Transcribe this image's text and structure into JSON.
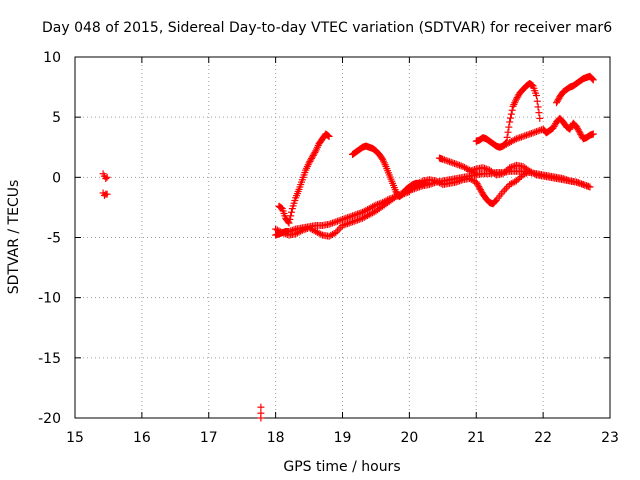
{
  "chart_data": {
    "type": "scatter",
    "title": "Day 048 of 2015, Sidereal Day-to-day VTEC variation (SDTVAR) for receiver mar6",
    "xlabel": "GPS time / hours",
    "ylabel": "SDTVAR / TECUs",
    "xlim": [
      15,
      23
    ],
    "ylim": [
      -20,
      10
    ],
    "xticks": [
      "15",
      "16",
      "17",
      "18",
      "19",
      "20",
      "21",
      "22",
      "23"
    ],
    "yticks": [
      "-20",
      "-15",
      "-10",
      "-5",
      "0",
      "5",
      "10"
    ],
    "grid": true,
    "marker": "plus",
    "color": "#ff0000",
    "series": [
      {
        "name": "",
        "points": [
          [
            15.42,
            0.3
          ],
          [
            15.44,
            0.1
          ],
          [
            15.46,
            -0.1
          ],
          [
            15.48,
            0.0
          ],
          [
            15.42,
            -1.3
          ],
          [
            15.44,
            -1.5
          ],
          [
            15.46,
            -1.4
          ],
          [
            15.48,
            -1.4
          ],
          [
            17.78,
            -19.1
          ],
          [
            17.78,
            -19.6
          ],
          [
            17.78,
            -20.0
          ]
        ]
      },
      {
        "name": "",
        "x": [
          18.0,
          18.05,
          18.1,
          18.15,
          18.2,
          18.3,
          18.4,
          18.5,
          18.6,
          18.7,
          18.8,
          18.9,
          19.0,
          19.1,
          19.2,
          19.3,
          19.4,
          19.5,
          19.6,
          19.7,
          19.8,
          19.9,
          20.0,
          20.1,
          20.2,
          20.3,
          20.4,
          20.5,
          20.6,
          20.7,
          20.8,
          20.9,
          21.0,
          21.1,
          21.2,
          21.3,
          21.4,
          21.5,
          21.6,
          21.7,
          21.8,
          21.9,
          22.0,
          22.1,
          22.2,
          22.3,
          22.4,
          22.5,
          22.6,
          22.7
        ],
        "y": [
          -4.8,
          -4.7,
          -4.6,
          -4.5,
          -4.5,
          -4.3,
          -4.2,
          -4.1,
          -4.0,
          -4.0,
          -3.9,
          -3.7,
          -3.5,
          -3.3,
          -3.1,
          -2.9,
          -2.6,
          -2.3,
          -2.1,
          -1.8,
          -1.6,
          -1.3,
          -1.1,
          -0.9,
          -0.7,
          -0.6,
          -0.4,
          -0.3,
          -0.2,
          -0.1,
          0.0,
          0.1,
          0.2,
          0.3,
          0.3,
          0.4,
          0.4,
          0.5,
          0.5,
          0.5,
          0.4,
          0.3,
          0.2,
          0.1,
          0.0,
          -0.1,
          -0.3,
          -0.4,
          -0.6,
          -0.8
        ]
      },
      {
        "name": "",
        "x": [
          18.0,
          18.1,
          18.2,
          18.3,
          18.4,
          18.5,
          18.6,
          18.7,
          18.8,
          18.9,
          19.0,
          19.1,
          19.2,
          19.3,
          19.4,
          19.5,
          19.6,
          19.7,
          19.8,
          19.9,
          20.0
        ],
        "y": [
          -4.3,
          -4.6,
          -4.8,
          -4.7,
          -4.4,
          -4.2,
          -4.5,
          -4.8,
          -4.9,
          -4.6,
          -4.0,
          -3.8,
          -3.6,
          -3.4,
          -3.1,
          -2.8,
          -2.4,
          -2.0,
          -1.6,
          -1.4,
          -1.2
        ]
      },
      {
        "name": "",
        "x": [
          18.05,
          18.1,
          18.15,
          18.2,
          18.25,
          18.3,
          18.35,
          18.4,
          18.45,
          18.5,
          18.55,
          18.6,
          18.65,
          18.7,
          18.75,
          18.8
        ],
        "y": [
          -2.4,
          -2.6,
          -3.4,
          -3.8,
          -2.6,
          -1.7,
          -1.0,
          -0.2,
          0.6,
          1.2,
          1.7,
          2.2,
          2.8,
          3.2,
          3.6,
          3.4
        ]
      },
      {
        "name": "",
        "x": [
          19.15,
          19.2,
          19.25,
          19.3,
          19.35,
          19.4,
          19.45,
          19.5,
          19.55,
          19.6,
          19.65,
          19.7,
          19.75,
          19.8,
          19.85,
          19.9,
          19.95,
          20.0,
          20.05,
          20.1,
          20.15,
          20.2,
          20.25
        ],
        "y": [
          1.9,
          2.1,
          2.3,
          2.5,
          2.6,
          2.5,
          2.4,
          2.2,
          1.9,
          1.5,
          0.9,
          0.2,
          -0.5,
          -1.2,
          -1.6,
          -1.4,
          -1.0,
          -0.8,
          -0.6,
          -0.5,
          -0.5,
          -0.6,
          -0.4
        ]
      },
      {
        "name": "",
        "x": [
          20.1,
          20.2,
          20.3,
          20.4,
          20.5,
          20.6,
          20.7,
          20.8,
          20.9,
          21.0,
          21.05,
          21.1,
          21.15,
          21.2,
          21.25,
          21.3,
          21.4,
          21.5,
          21.6,
          21.7,
          21.8
        ],
        "y": [
          -0.6,
          -0.3,
          -0.2,
          -0.3,
          -0.6,
          -0.5,
          -0.4,
          -0.2,
          -0.1,
          -0.4,
          -0.9,
          -1.4,
          -1.8,
          -2.1,
          -2.2,
          -1.9,
          -1.2,
          -0.6,
          -0.3,
          0.2,
          0.5
        ]
      },
      {
        "name": "",
        "x": [
          20.45,
          20.5,
          20.6,
          20.7,
          20.8,
          20.9,
          21.0
        ],
        "y": [
          1.6,
          1.5,
          1.3,
          1.1,
          0.9,
          0.6,
          0.3
        ]
      },
      {
        "name": "",
        "x": [
          21.0,
          21.05,
          21.1,
          21.15,
          21.2,
          21.25,
          21.3,
          21.35,
          21.4,
          21.45,
          21.5,
          21.55,
          21.6,
          21.65,
          21.7,
          21.75,
          21.8,
          21.85,
          21.9,
          21.95
        ],
        "y": [
          3.0,
          3.1,
          3.3,
          3.2,
          3.0,
          2.8,
          2.6,
          2.5,
          2.6,
          2.9,
          4.6,
          5.9,
          6.5,
          7.0,
          7.3,
          7.6,
          7.8,
          7.6,
          6.8,
          4.9
        ]
      },
      {
        "name": "",
        "x": [
          21.4,
          21.5,
          21.6,
          21.7,
          21.8,
          21.9,
          22.0,
          22.05,
          22.1,
          22.15,
          22.2,
          22.25,
          22.3,
          22.35,
          22.4,
          22.45,
          22.5,
          22.55,
          22.6,
          22.65,
          22.7,
          22.75
        ],
        "y": [
          2.6,
          2.9,
          3.2,
          3.4,
          3.6,
          3.8,
          4.0,
          3.7,
          3.9,
          4.1,
          4.6,
          4.9,
          4.6,
          4.2,
          4.0,
          4.5,
          4.2,
          3.7,
          3.2,
          3.3,
          3.5,
          3.6
        ]
      },
      {
        "name": "",
        "x": [
          22.2,
          22.25,
          22.3,
          22.35,
          22.4,
          22.45,
          22.5,
          22.55,
          22.6,
          22.65,
          22.7,
          22.75
        ],
        "y": [
          6.2,
          6.7,
          7.1,
          7.3,
          7.5,
          7.6,
          7.8,
          8.0,
          8.2,
          8.3,
          8.4,
          8.1
        ]
      },
      {
        "name": "",
        "x": [
          20.9,
          21.0,
          21.1,
          21.2,
          21.3,
          21.4,
          21.5,
          21.6,
          21.7,
          21.8,
          21.9,
          22.0,
          22.1,
          22.2,
          22.3,
          22.4,
          22.5,
          22.6,
          22.7
        ],
        "y": [
          0.5,
          0.7,
          0.8,
          0.6,
          0.2,
          0.3,
          0.8,
          1.0,
          0.9,
          0.5,
          0.2,
          0.1,
          0.0,
          -0.1,
          -0.2,
          -0.3,
          -0.4,
          -0.6,
          -0.8
        ]
      }
    ]
  }
}
